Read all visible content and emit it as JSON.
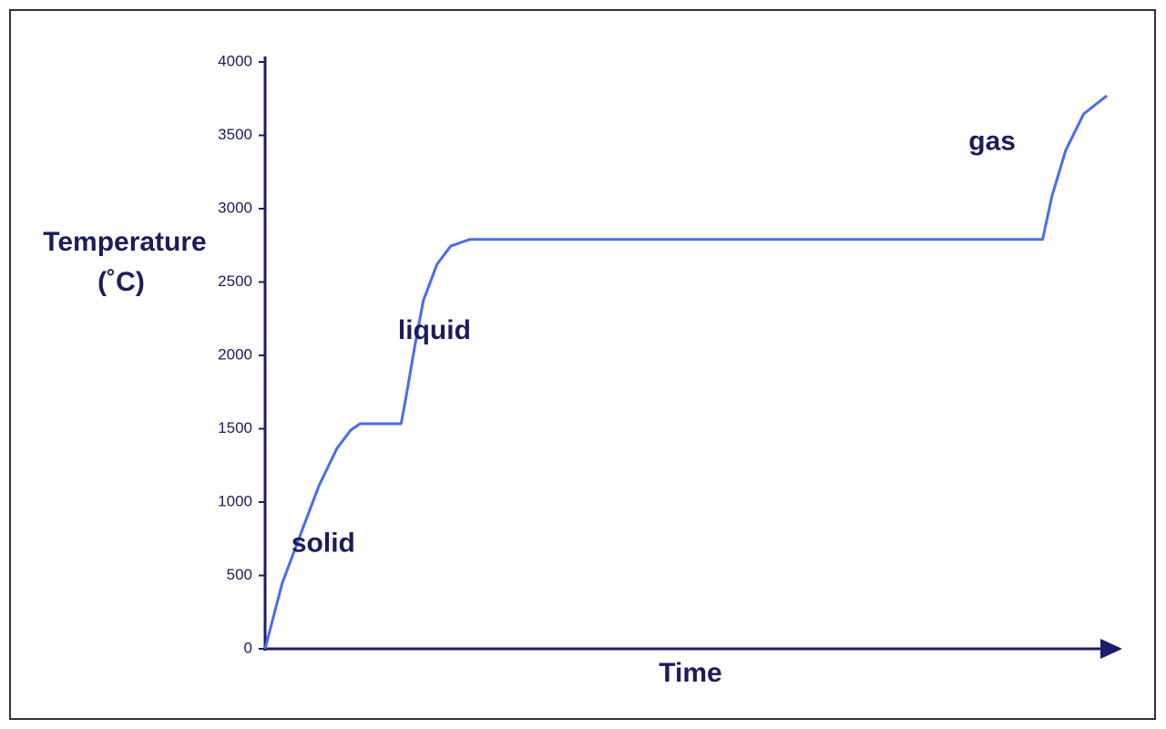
{
  "chart_data": {
    "type": "line",
    "xlabel": "Time",
    "ylabel": "Temperature",
    "ylabel_unit": "(˚C)",
    "xlim": [
      0,
      100
    ],
    "ylim": [
      0,
      4000
    ],
    "yticks": [
      0,
      500,
      1000,
      1500,
      2000,
      2500,
      3000,
      3500,
      4000
    ],
    "x": [
      0,
      2.0,
      4.2,
      6.3,
      8.4,
      10.0,
      11.1,
      15.9,
      16.4,
      17.5,
      18.5,
      20.1,
      21.7,
      23.9,
      90.9,
      92.0,
      93.6,
      95.7,
      98.4
    ],
    "series": [
      {
        "color": "#4a6cf0",
        "values": [
          0,
          447,
          789,
          1112,
          1366,
          1490,
          1534,
          1534,
          1690,
          2062,
          2373,
          2621,
          2745,
          2790,
          2790,
          3087,
          3398,
          3646,
          3770
        ]
      }
    ],
    "annotations": [
      {
        "text": "solid",
        "x": 6.8,
        "y": 710
      },
      {
        "text": "liquid",
        "x": 19.8,
        "y": 2160
      },
      {
        "text": "gas",
        "x": 85.0,
        "y": 3450
      }
    ]
  }
}
